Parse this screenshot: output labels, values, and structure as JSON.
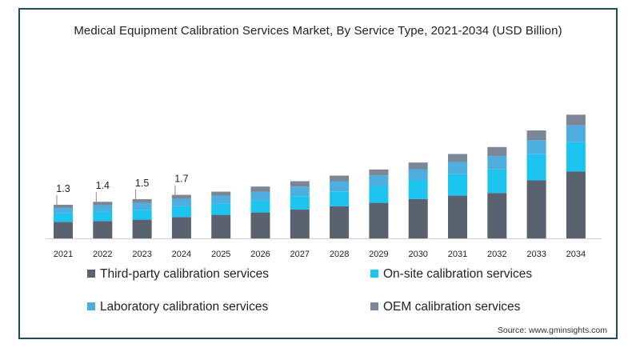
{
  "chart_data": {
    "type": "bar",
    "stacked": true,
    "title": "Medical Equipment Calibration Services Market, By Service Type, 2021-2034 (USD Billion)",
    "xlabel": "",
    "ylabel": "",
    "categories": [
      "2021",
      "2022",
      "2023",
      "2024",
      "2025",
      "2026",
      "2027",
      "2028",
      "2029",
      "2030",
      "2031",
      "2032",
      "2033",
      "2034"
    ],
    "series": [
      {
        "name": "Third-party calibration services",
        "color": "#5a6270",
        "values": [
          0.62,
          0.65,
          0.7,
          0.8,
          0.88,
          0.97,
          1.08,
          1.2,
          1.33,
          1.47,
          1.6,
          1.7,
          2.17,
          2.5
        ]
      },
      {
        "name": "On-site calibration services",
        "color": "#1ec4f0",
        "values": [
          0.32,
          0.34,
          0.37,
          0.4,
          0.42,
          0.45,
          0.5,
          0.56,
          0.63,
          0.7,
          0.8,
          0.88,
          0.98,
          1.1
        ]
      },
      {
        "name": "Laboratory calibration services",
        "color": "#4faee0",
        "values": [
          0.2,
          0.25,
          0.26,
          0.28,
          0.3,
          0.32,
          0.36,
          0.38,
          0.4,
          0.42,
          0.46,
          0.5,
          0.53,
          0.63
        ]
      },
      {
        "name": "OEM calibration services",
        "color": "#7b8797",
        "values": [
          0.12,
          0.13,
          0.14,
          0.15,
          0.15,
          0.2,
          0.2,
          0.21,
          0.22,
          0.25,
          0.3,
          0.34,
          0.36,
          0.4
        ]
      }
    ],
    "data_labels": {
      "2021": "1.3",
      "2022": "1.4",
      "2023": "1.5",
      "2024": "1.7"
    },
    "ylim": [
      0,
      5
    ],
    "grid": false,
    "legend_position": "bottom"
  },
  "source": "Source: www.gminsights.com"
}
